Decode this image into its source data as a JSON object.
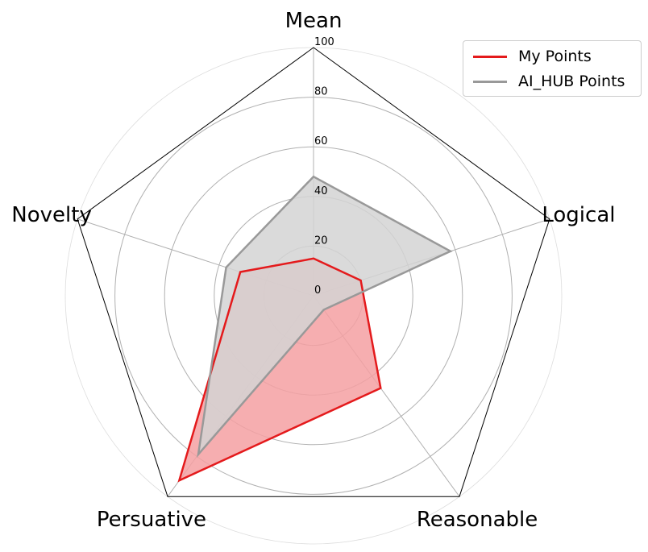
{
  "chart_data": {
    "type": "radar",
    "axes": [
      "Mean",
      "Logical",
      "Reasonable",
      "Persuative",
      "Novelty"
    ],
    "rlim": [
      0,
      100
    ],
    "rticks": [
      0,
      20,
      40,
      60,
      80,
      100
    ],
    "rtick_labels": [
      "0",
      "20",
      "40",
      "60",
      "80",
      "100"
    ],
    "grid": true,
    "legend_position": "top-right",
    "series": [
      {
        "name": "My Points",
        "color": "#e41a1c",
        "fill": "#f4a0a2",
        "values": [
          15,
          20,
          46,
          92,
          31
        ]
      },
      {
        "name": "AI_HUB Points",
        "color": "#999999",
        "fill": "#d3d3d3",
        "values": [
          48,
          58,
          7,
          79,
          37
        ]
      }
    ]
  }
}
